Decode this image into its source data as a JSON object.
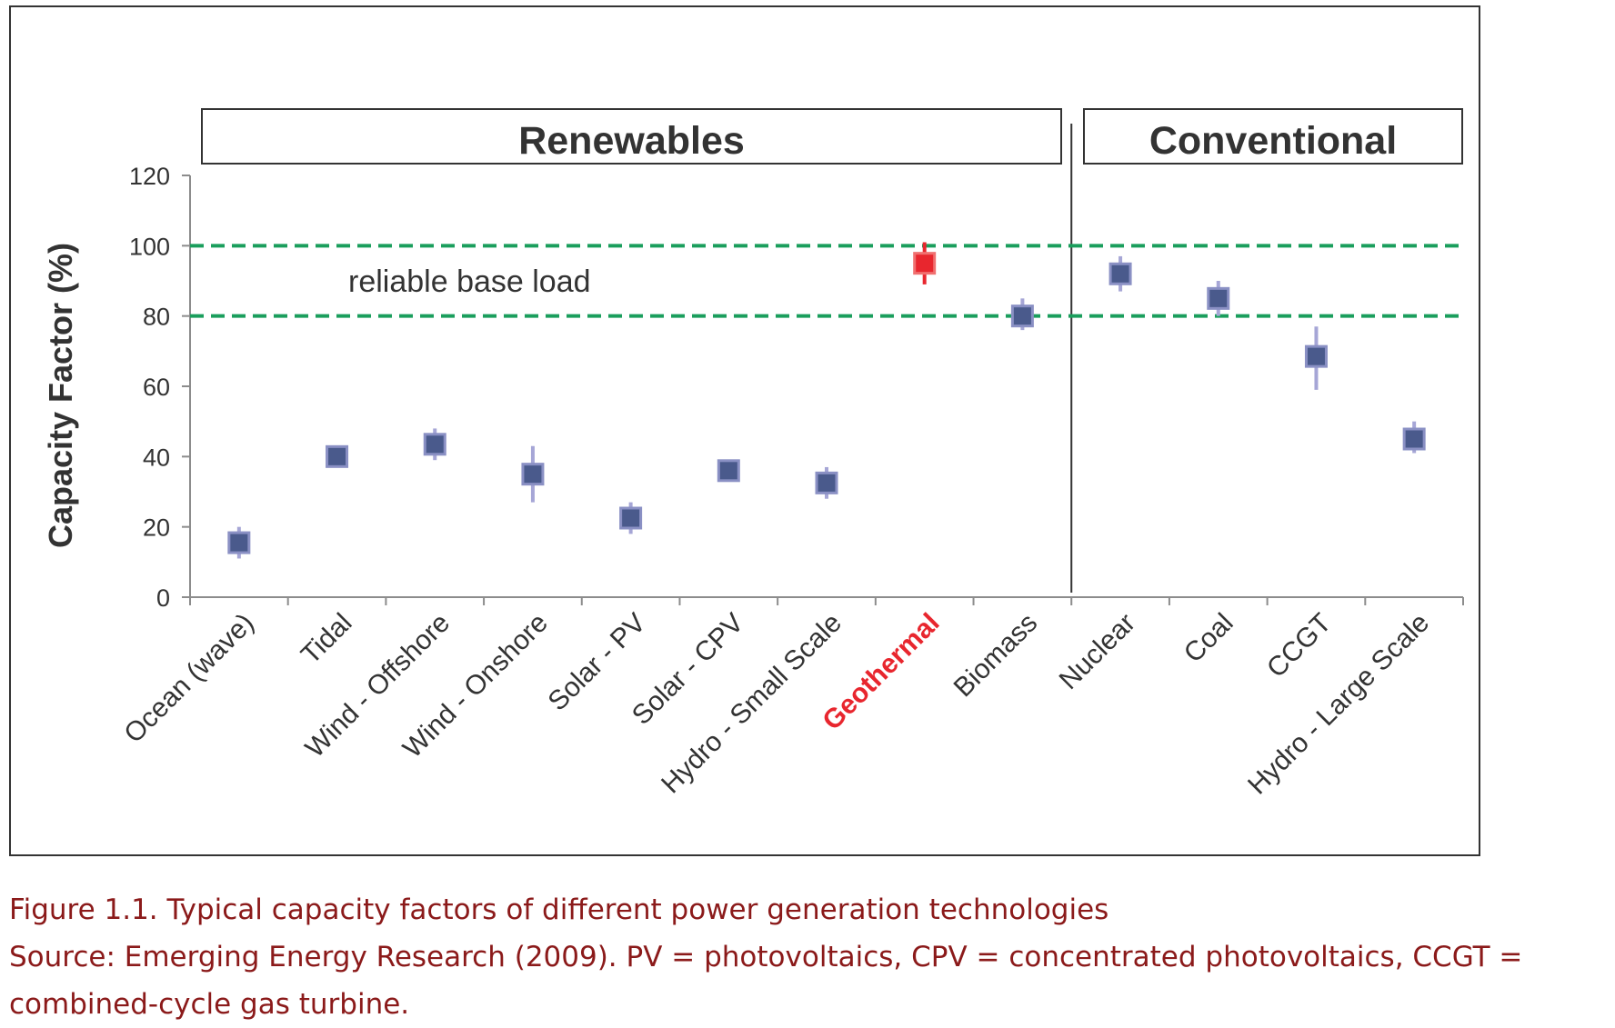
{
  "chart_data": {
    "type": "scatter",
    "ylabel": "Capacity Factor (%)",
    "ylim": [
      0,
      120
    ],
    "yticks": [
      0,
      20,
      40,
      60,
      80,
      100,
      120
    ],
    "grid": false,
    "groups": [
      {
        "label": "Renewables",
        "from": 0,
        "to": 8
      },
      {
        "label": "Conventional",
        "from": 9,
        "to": 12
      }
    ],
    "reference_lines": [
      {
        "value": 100,
        "color": "#1a9e5c",
        "style": "dashed"
      },
      {
        "value": 80,
        "color": "#1a9e5c",
        "style": "dashed"
      }
    ],
    "band_annotation": {
      "text": "reliable base load",
      "y": 90
    },
    "categories": [
      "Ocean (wave)",
      "Tidal",
      "Wind - Offshore",
      "Wind - Onshore",
      "Solar - PV",
      "Solar - CPV",
      "Hydro - Small Scale",
      "Geothermal",
      "Biomass",
      "Nuclear",
      "Coal",
      "CCGT",
      "Hydro - Large Scale"
    ],
    "values": [
      15.5,
      40,
      43.5,
      35,
      22.5,
      36,
      32.5,
      95,
      80,
      92,
      85,
      68.5,
      45
    ],
    "low": [
      11,
      40,
      39,
      27,
      18,
      36,
      28,
      89,
      76,
      87,
      80,
      59,
      41
    ],
    "high": [
      20,
      40,
      48,
      43,
      27,
      36,
      37,
      101,
      85,
      97,
      90,
      77,
      50
    ],
    "highlight": {
      "category": "Geothermal",
      "color": "#e8262e"
    },
    "marker_color": "#4a5a8c",
    "errorbar_color": "#a6a6d6"
  },
  "caption": {
    "line1": "Figure 1.1. Typical capacity factors of different power generation technologies",
    "line2": "Source: Emerging Energy Research (2009). PV = photovoltaics, CPV = concentrated photovoltaics, CCGT = combined-cycle gas turbine."
  }
}
